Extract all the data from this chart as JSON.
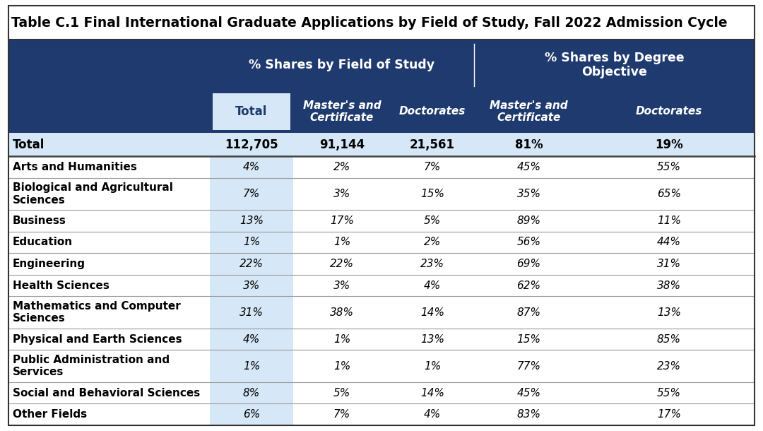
{
  "title": "Table C.1 Final International Graduate Applications by Field of Study, Fall 2022 Admission Cycle",
  "header_bg_dark": "#1e3a6e",
  "header_bg_light": "#d6e8f7",
  "row_bg_total": "#d6e8f7",
  "row_bg_white": "#ffffff",
  "row_bg_total_col": "#d6e8f7",
  "group_headers": [
    "% Shares by Field of Study",
    "% Shares by Degree\nObjective"
  ],
  "col_headers_row2": [
    "Total",
    "Master's and\nCertificate",
    "Doctorates",
    "Master's and\nCertificate",
    "Doctorates"
  ],
  "rows": [
    [
      "Total",
      "112,705",
      "91,144",
      "21,561",
      "81%",
      "19%"
    ],
    [
      "Arts and Humanities",
      "4%",
      "2%",
      "7%",
      "45%",
      "55%"
    ],
    [
      "Biological and Agricultural\nSciences",
      "7%",
      "3%",
      "15%",
      "35%",
      "65%"
    ],
    [
      "Business",
      "13%",
      "17%",
      "5%",
      "89%",
      "11%"
    ],
    [
      "Education",
      "1%",
      "1%",
      "2%",
      "56%",
      "44%"
    ],
    [
      "Engineering",
      "22%",
      "22%",
      "23%",
      "69%",
      "31%"
    ],
    [
      "Health Sciences",
      "3%",
      "3%",
      "4%",
      "62%",
      "38%"
    ],
    [
      "Mathematics and Computer\nSciences",
      "31%",
      "38%",
      "14%",
      "87%",
      "13%"
    ],
    [
      "Physical and Earth Sciences",
      "4%",
      "1%",
      "13%",
      "15%",
      "85%"
    ],
    [
      "Public Administration and\nServices",
      "1%",
      "1%",
      "1%",
      "77%",
      "23%"
    ],
    [
      "Social and Behavioral Sciences",
      "8%",
      "5%",
      "14%",
      "45%",
      "55%"
    ],
    [
      "Other Fields",
      "6%",
      "7%",
      "4%",
      "83%",
      "17%"
    ]
  ],
  "figsize": [
    10.8,
    6.1
  ],
  "dpi": 100
}
